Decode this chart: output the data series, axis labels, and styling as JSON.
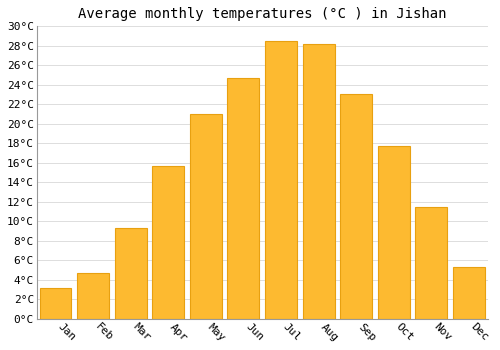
{
  "title": "Average monthly temperatures (°C ) in Jishan",
  "months": [
    "Jan",
    "Feb",
    "Mar",
    "Apr",
    "May",
    "Jun",
    "Jul",
    "Aug",
    "Sep",
    "Oct",
    "Nov",
    "Dec"
  ],
  "temperatures": [
    3.2,
    4.7,
    9.3,
    15.7,
    21.0,
    24.7,
    28.5,
    28.2,
    23.1,
    17.7,
    11.5,
    5.3
  ],
  "bar_color": "#FDBA30",
  "bar_edge_color": "#E8A010",
  "background_color": "#FFFFFF",
  "grid_color": "#DDDDDD",
  "ylim": [
    0,
    30
  ],
  "ytick_step": 2,
  "title_fontsize": 10,
  "tick_fontsize": 8,
  "font_family": "monospace"
}
